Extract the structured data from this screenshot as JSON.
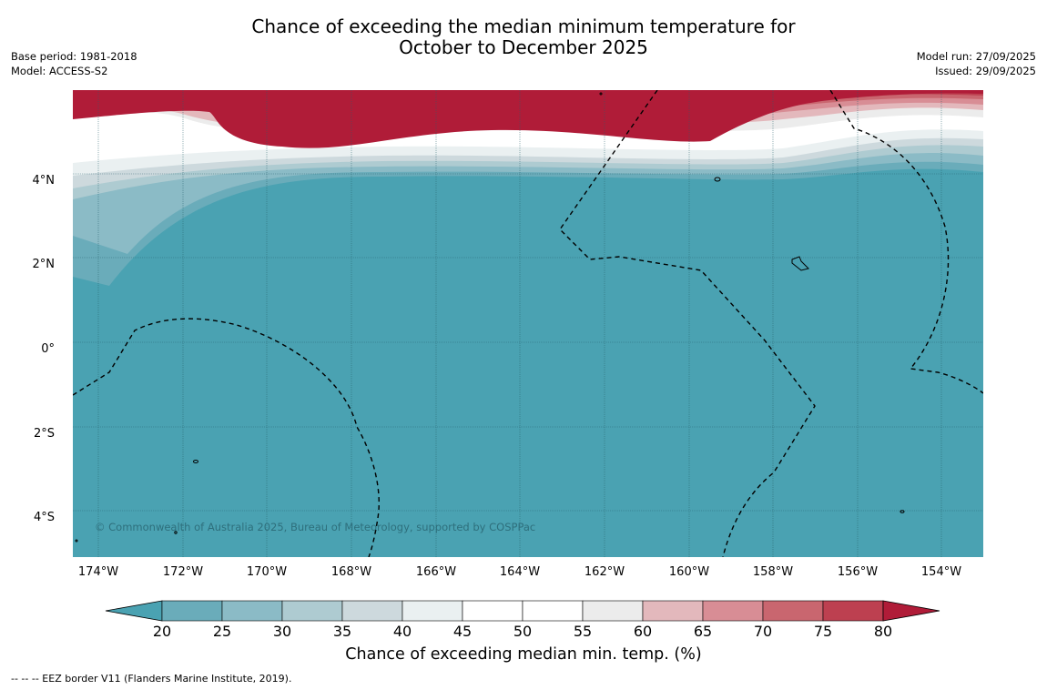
{
  "title": {
    "line1": "Chance of exceeding the median minimum temperature for",
    "line2": "October to December 2025"
  },
  "meta_left": {
    "base_period": "Base period: 1981-2018",
    "model": "Model: ACCESS-S2"
  },
  "meta_right": {
    "model_run": "Model run: 27/09/2025",
    "issued": "Issued: 29/09/2025"
  },
  "map": {
    "lat_labels": [
      "4°N",
      "2°N",
      "0°",
      "2°S",
      "4°S"
    ],
    "lon_labels": [
      "174°W",
      "172°W",
      "170°W",
      "168°W",
      "166°W",
      "164°W",
      "162°W",
      "160°W",
      "158°W",
      "156°W",
      "154°W"
    ],
    "copyright": "© Commonwealth of Australia 2025, Bureau of Meteorology, supported by COSPPac"
  },
  "colorbar": {
    "ticks": [
      "20",
      "25",
      "30",
      "35",
      "40",
      "45",
      "50",
      "55",
      "60",
      "65",
      "70",
      "75",
      "80"
    ],
    "colors": [
      "#4aa2b2",
      "#6aacba",
      "#8bbbc6",
      "#aecbd1",
      "#cdd9dd",
      "#eaf0f1",
      "#ffffff",
      "#ffffff",
      "#ececec",
      "#e3b8bc",
      "#d88d95",
      "#c9666f",
      "#bd4050",
      "#b01c38"
    ],
    "label": "Chance of exceeding median min. temp. (%)"
  },
  "footnote": "--  --  -- EEZ border V11 (Flanders Marine Institute, 2019)."
}
